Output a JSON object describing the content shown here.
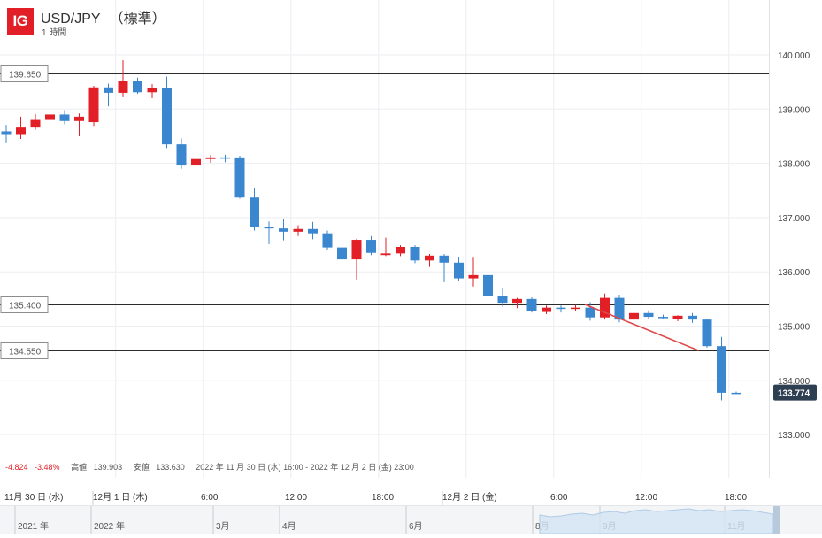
{
  "header": {
    "logo": "IG",
    "symbol": "USD/JPY",
    "variant": "（標準）",
    "interval": "1 時間"
  },
  "stats": {
    "change": "-4.824",
    "change_pct": "-3.48%",
    "high_label": "高値",
    "high": "139.903",
    "low_label": "安値",
    "low": "133.630",
    "range": "2022 年 11 月 30 日 (水) 16:00 - 2022 年 12 月 2 日 (金) 23:00"
  },
  "colors": {
    "up": "#e21e26",
    "down": "#3a87cf",
    "trendline": "#dd4a4a",
    "grid": "#eceef1",
    "price_badge": "#2f3f52"
  },
  "chart_data": {
    "type": "candlestick",
    "ylim": [
      132.4,
      140.9
    ],
    "y_ticks": [
      "140.000",
      "139.000",
      "138.000",
      "137.000",
      "136.000",
      "135.000",
      "134.000",
      "133.000"
    ],
    "x_labels": [
      "11月 30 日 (水)",
      "12月 1 日 (木)",
      "6:00",
      "12:00",
      "18:00",
      "12月 2 日 (金)",
      "6:00",
      "12:00",
      "18:00"
    ],
    "horizontal_lines": [
      "139.650",
      "135.400",
      "134.550"
    ],
    "last_price": "133.774",
    "trendline": [
      {
        "i": 40,
        "y": 135.4
      },
      {
        "i": 47,
        "y": 134.55
      }
    ],
    "candles": [
      {
        "o": 138.59,
        "h": 138.71,
        "l": 138.37,
        "c": 138.54
      },
      {
        "o": 138.54,
        "h": 138.86,
        "l": 138.45,
        "c": 138.66
      },
      {
        "o": 138.66,
        "h": 138.91,
        "l": 138.62,
        "c": 138.8
      },
      {
        "o": 138.8,
        "h": 139.03,
        "l": 138.72,
        "c": 138.9
      },
      {
        "o": 138.9,
        "h": 138.98,
        "l": 138.72,
        "c": 138.78
      },
      {
        "o": 138.78,
        "h": 138.92,
        "l": 138.5,
        "c": 138.86
      },
      {
        "o": 138.76,
        "h": 139.43,
        "l": 138.69,
        "c": 139.4
      },
      {
        "o": 139.4,
        "h": 139.47,
        "l": 139.05,
        "c": 139.3
      },
      {
        "o": 139.3,
        "h": 139.9,
        "l": 139.22,
        "c": 139.52
      },
      {
        "o": 139.52,
        "h": 139.58,
        "l": 139.28,
        "c": 139.31
      },
      {
        "o": 139.31,
        "h": 139.46,
        "l": 139.2,
        "c": 139.38
      },
      {
        "o": 139.38,
        "h": 139.6,
        "l": 138.28,
        "c": 138.35
      },
      {
        "o": 138.35,
        "h": 138.46,
        "l": 137.9,
        "c": 137.96
      },
      {
        "o": 137.96,
        "h": 138.14,
        "l": 137.65,
        "c": 138.08
      },
      {
        "o": 138.08,
        "h": 138.15,
        "l": 138.01,
        "c": 138.11
      },
      {
        "o": 138.11,
        "h": 138.16,
        "l": 138.02,
        "c": 138.11
      },
      {
        "o": 138.11,
        "h": 138.14,
        "l": 137.35,
        "c": 137.37
      },
      {
        "o": 137.37,
        "h": 137.54,
        "l": 136.76,
        "c": 136.83
      },
      {
        "o": 136.83,
        "h": 136.93,
        "l": 136.51,
        "c": 136.8
      },
      {
        "o": 136.8,
        "h": 136.98,
        "l": 136.58,
        "c": 136.74
      },
      {
        "o": 136.74,
        "h": 136.86,
        "l": 136.66,
        "c": 136.79
      },
      {
        "o": 136.79,
        "h": 136.92,
        "l": 136.6,
        "c": 136.71
      },
      {
        "o": 136.71,
        "h": 136.76,
        "l": 136.4,
        "c": 136.45
      },
      {
        "o": 136.45,
        "h": 136.56,
        "l": 136.2,
        "c": 136.23
      },
      {
        "o": 136.23,
        "h": 136.61,
        "l": 135.86,
        "c": 136.59
      },
      {
        "o": 136.59,
        "h": 136.66,
        "l": 136.31,
        "c": 136.35
      },
      {
        "o": 136.31,
        "h": 136.63,
        "l": 136.29,
        "c": 136.34
      },
      {
        "o": 136.34,
        "h": 136.49,
        "l": 136.29,
        "c": 136.46
      },
      {
        "o": 136.46,
        "h": 136.49,
        "l": 136.16,
        "c": 136.21
      },
      {
        "o": 136.21,
        "h": 136.33,
        "l": 136.09,
        "c": 136.3
      },
      {
        "o": 136.3,
        "h": 136.33,
        "l": 135.81,
        "c": 136.17
      },
      {
        "o": 136.17,
        "h": 136.28,
        "l": 135.84,
        "c": 135.88
      },
      {
        "o": 135.88,
        "h": 136.26,
        "l": 135.73,
        "c": 135.94
      },
      {
        "o": 135.94,
        "h": 135.96,
        "l": 135.52,
        "c": 135.55
      },
      {
        "o": 135.55,
        "h": 135.7,
        "l": 135.36,
        "c": 135.43
      },
      {
        "o": 135.43,
        "h": 135.52,
        "l": 135.33,
        "c": 135.5
      },
      {
        "o": 135.5,
        "h": 135.53,
        "l": 135.25,
        "c": 135.28
      },
      {
        "o": 135.26,
        "h": 135.38,
        "l": 135.22,
        "c": 135.34
      },
      {
        "o": 135.34,
        "h": 135.38,
        "l": 135.25,
        "c": 135.33
      },
      {
        "o": 135.33,
        "h": 135.39,
        "l": 135.28,
        "c": 135.34
      },
      {
        "o": 135.34,
        "h": 135.44,
        "l": 135.1,
        "c": 135.16
      },
      {
        "o": 135.16,
        "h": 135.6,
        "l": 135.12,
        "c": 135.52
      },
      {
        "o": 135.52,
        "h": 135.58,
        "l": 135.07,
        "c": 135.12
      },
      {
        "o": 135.12,
        "h": 135.36,
        "l": 135.08,
        "c": 135.24
      },
      {
        "o": 135.24,
        "h": 135.29,
        "l": 135.12,
        "c": 135.17
      },
      {
        "o": 135.17,
        "h": 135.21,
        "l": 135.13,
        "c": 135.16
      },
      {
        "o": 135.13,
        "h": 135.2,
        "l": 135.09,
        "c": 135.19
      },
      {
        "o": 135.19,
        "h": 135.24,
        "l": 135.06,
        "c": 135.12
      },
      {
        "o": 135.12,
        "h": 135.13,
        "l": 134.6,
        "c": 134.63
      },
      {
        "o": 134.63,
        "h": 134.8,
        "l": 133.63,
        "c": 133.77
      },
      {
        "o": 133.77,
        "h": 133.79,
        "l": 133.75,
        "c": 133.77
      }
    ]
  },
  "scroller": {
    "labels": [
      "2021 年",
      "2022 年",
      "3月",
      "4月",
      "6月",
      "8月",
      "9月",
      "11月"
    ]
  }
}
